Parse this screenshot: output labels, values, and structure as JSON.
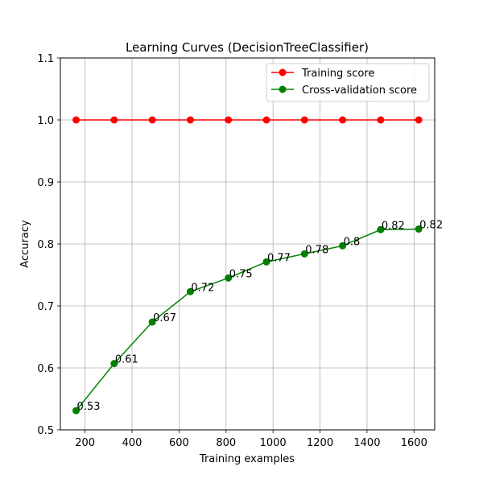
{
  "chart_data": {
    "type": "line",
    "title": "Learning Curves (DecisionTreeClassifier)",
    "xlabel": "Training examples",
    "ylabel": "Accuracy",
    "xlim": [
      95,
      1688
    ],
    "ylim": [
      0.5,
      1.1
    ],
    "xticks": [
      200,
      400,
      600,
      800,
      1000,
      1200,
      1400,
      1600
    ],
    "yticks": [
      0.5,
      0.6,
      0.7,
      0.8,
      0.9,
      1.0,
      1.1
    ],
    "ytick_labels": [
      "0.5",
      "0.6",
      "0.7",
      "0.8",
      "0.9",
      "1.0",
      "1.1"
    ],
    "grid": true,
    "legend_position": "top-right",
    "x": [
      162,
      324,
      486,
      648,
      810,
      972,
      1134,
      1296,
      1458,
      1620
    ],
    "series": [
      {
        "name": "Training score",
        "color": "#ff0000",
        "values": [
          1.0,
          1.0,
          1.0,
          1.0,
          1.0,
          1.0,
          1.0,
          1.0,
          1.0,
          1.0
        ]
      },
      {
        "name": "Cross-validation score",
        "color": "#008000",
        "values": [
          0.531,
          0.607,
          0.674,
          0.723,
          0.745,
          0.771,
          0.784,
          0.797,
          0.823,
          0.824
        ],
        "labels": [
          "0.53",
          "0.61",
          "0.67",
          "0.72",
          "0.75",
          "0.77",
          "0.78",
          "0.8",
          "0.82",
          "0.82"
        ]
      }
    ]
  }
}
